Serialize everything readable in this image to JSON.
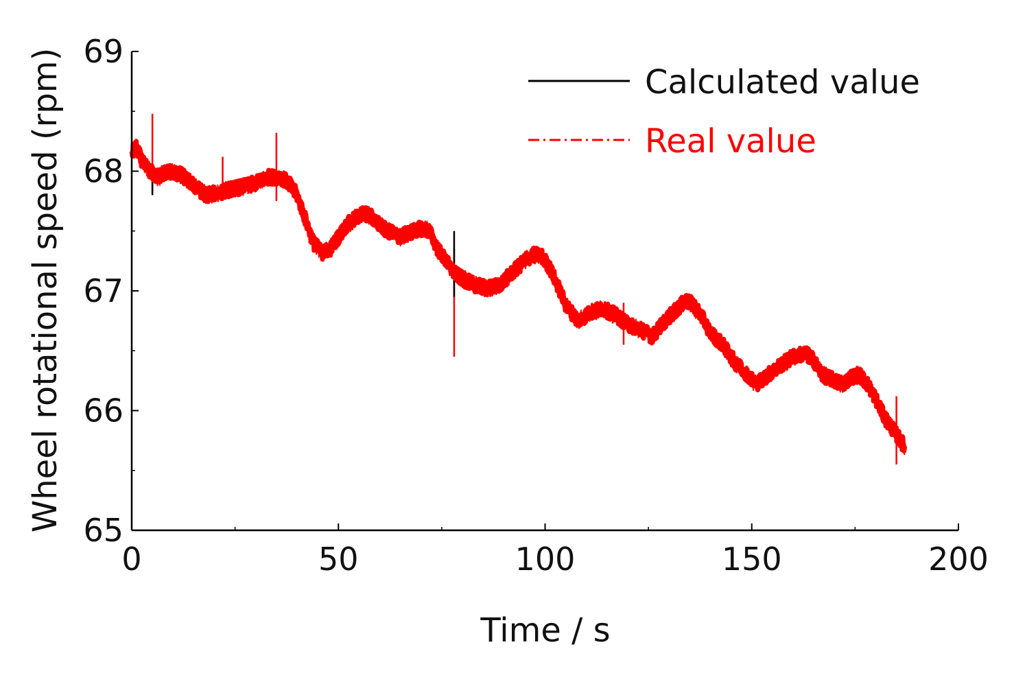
{
  "chart_data": {
    "type": "line",
    "title": "",
    "xlabel": "Time / s",
    "ylabel": "Wheel rotational speed (rpm)",
    "xlim": [
      0,
      200
    ],
    "ylim": [
      65,
      69
    ],
    "xticks": [
      0,
      50,
      100,
      150,
      200
    ],
    "yticks": [
      65,
      66,
      67,
      68,
      69
    ],
    "grid": false,
    "legend_position": "top-right",
    "series": [
      {
        "name": "Calculated value",
        "color": "#000000",
        "style": "solid",
        "x": [
          0,
          1,
          3,
          6,
          9,
          12,
          15,
          18,
          21,
          24,
          27,
          30,
          33,
          36,
          38,
          40,
          42,
          44,
          46,
          48,
          50,
          52,
          54,
          56,
          58,
          60,
          62,
          65,
          68,
          70,
          72,
          74,
          76,
          78,
          80,
          83,
          86,
          89,
          92,
          95,
          97,
          99,
          101,
          103,
          105,
          108,
          111,
          114,
          117,
          120,
          123,
          126,
          129,
          132,
          134,
          136,
          138,
          140,
          143,
          146,
          149,
          151,
          154,
          157,
          160,
          163,
          165,
          167,
          170,
          172,
          174,
          176,
          178,
          180,
          182,
          184,
          186,
          187
        ],
        "y": [
          68.15,
          68.2,
          68.05,
          67.95,
          68.0,
          67.97,
          67.88,
          67.8,
          67.82,
          67.85,
          67.87,
          67.9,
          67.95,
          67.95,
          67.9,
          67.8,
          67.6,
          67.4,
          67.32,
          67.35,
          67.45,
          67.55,
          67.6,
          67.65,
          67.62,
          67.55,
          67.5,
          67.45,
          67.5,
          67.52,
          67.5,
          67.35,
          67.25,
          67.15,
          67.1,
          67.05,
          67.02,
          67.05,
          67.15,
          67.25,
          67.3,
          67.3,
          67.2,
          67.05,
          66.88,
          66.75,
          66.82,
          66.85,
          66.8,
          66.72,
          66.68,
          66.62,
          66.75,
          66.85,
          66.92,
          66.88,
          66.78,
          66.65,
          66.55,
          66.4,
          66.3,
          66.22,
          66.3,
          66.38,
          66.45,
          66.48,
          66.42,
          66.3,
          66.25,
          66.22,
          66.28,
          66.3,
          66.22,
          66.1,
          65.95,
          65.85,
          65.75,
          65.7
        ]
      },
      {
        "name": "Real value",
        "color": "#ff0000",
        "style": "dash-dot",
        "x": [
          0,
          1,
          3,
          6,
          9,
          12,
          15,
          18,
          21,
          24,
          27,
          30,
          33,
          36,
          38,
          40,
          42,
          44,
          46,
          48,
          50,
          52,
          54,
          56,
          58,
          60,
          62,
          65,
          68,
          70,
          72,
          74,
          76,
          78,
          80,
          83,
          86,
          89,
          92,
          95,
          97,
          99,
          101,
          103,
          105,
          108,
          111,
          114,
          117,
          120,
          123,
          126,
          129,
          132,
          134,
          136,
          138,
          140,
          143,
          146,
          149,
          151,
          154,
          157,
          160,
          163,
          165,
          167,
          170,
          172,
          174,
          176,
          178,
          180,
          182,
          184,
          186,
          187
        ],
        "y": [
          68.15,
          68.2,
          68.05,
          67.95,
          68.0,
          67.97,
          67.88,
          67.8,
          67.82,
          67.85,
          67.87,
          67.9,
          67.95,
          67.95,
          67.9,
          67.8,
          67.6,
          67.4,
          67.32,
          67.35,
          67.45,
          67.55,
          67.6,
          67.65,
          67.62,
          67.55,
          67.5,
          67.45,
          67.5,
          67.52,
          67.5,
          67.35,
          67.25,
          67.15,
          67.1,
          67.05,
          67.02,
          67.05,
          67.15,
          67.25,
          67.3,
          67.3,
          67.2,
          67.05,
          66.88,
          66.75,
          66.82,
          66.85,
          66.8,
          66.72,
          66.68,
          66.62,
          66.75,
          66.85,
          66.92,
          66.88,
          66.78,
          66.65,
          66.55,
          66.4,
          66.3,
          66.22,
          66.3,
          66.38,
          66.45,
          66.48,
          66.42,
          66.3,
          66.25,
          66.22,
          66.28,
          66.3,
          66.22,
          66.1,
          65.95,
          65.85,
          65.75,
          65.7
        ]
      }
    ],
    "spikes": [
      {
        "x": 5,
        "ymin": 67.82,
        "ymax": 68.48,
        "color": "#ff0000"
      },
      {
        "x": 5,
        "ymin": 67.8,
        "ymax": 68.05,
        "color": "#000000"
      },
      {
        "x": 22,
        "ymin": 67.75,
        "ymax": 68.12,
        "color": "#ff0000"
      },
      {
        "x": 35,
        "ymin": 67.75,
        "ymax": 68.32,
        "color": "#ff0000"
      },
      {
        "x": 78,
        "ymin": 66.45,
        "ymax": 67.35,
        "color": "#ff0000"
      },
      {
        "x": 78,
        "ymin": 66.95,
        "ymax": 67.5,
        "color": "#000000"
      },
      {
        "x": 119,
        "ymin": 66.55,
        "ymax": 66.9,
        "color": "#ff0000"
      },
      {
        "x": 185,
        "ymin": 65.55,
        "ymax": 66.12,
        "color": "#ff0000"
      }
    ]
  }
}
